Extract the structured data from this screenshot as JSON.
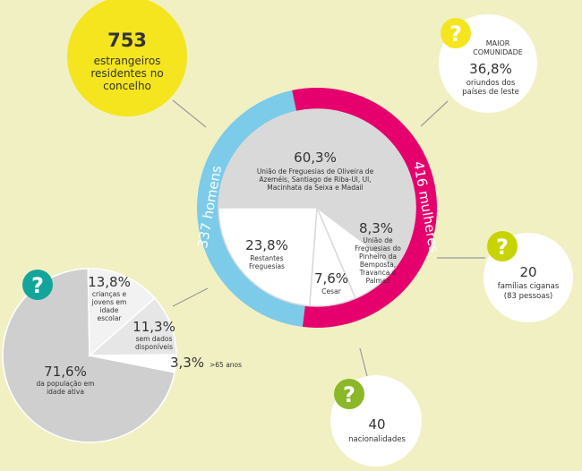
{
  "colors": {
    "background": "#f1f0c3",
    "yellow": "#f4e51e",
    "blue": "#7ccbe9",
    "magenta": "#e5006d",
    "gray_main": "#d9d9d9",
    "gray_light": "#f2f2f2",
    "gray_mid": "#e6e6e6",
    "gray_dark": "#cfcfcf",
    "white": "#ffffff",
    "teal": "#12a59c",
    "green": "#8ab826",
    "lime": "#c8d400",
    "text": "#333333"
  },
  "foreigners": {
    "number": "753",
    "line1": "estrangeiros",
    "line2": "residentes no",
    "line3": "concelho"
  },
  "men": {
    "label": "337 homens",
    "value": 337
  },
  "women": {
    "label": "416 mulheres",
    "value": 416
  },
  "parishes": [
    {
      "id": "oliveira",
      "percent_label": "60,3%",
      "value": 60.3,
      "desc": [
        "União de Freguesias de Oliveira de",
        "Azeméis, Santiago de Riba-Ul, Ul,",
        "Macinhata da Seixa e Madail"
      ]
    },
    {
      "id": "pinheiro",
      "percent_label": "8,3%",
      "value": 8.3,
      "desc": [
        "União de",
        "Freguesias do",
        "Pinheiro da",
        "Bemposta,",
        "Travanca e",
        "Palmaz"
      ]
    },
    {
      "id": "cesar",
      "percent_label": "7,6%",
      "value": 7.6,
      "desc": [
        "Cesar"
      ]
    },
    {
      "id": "restantes",
      "percent_label": "23,8%",
      "value": 23.8,
      "desc": [
        "Restantes",
        "Freguesias"
      ]
    }
  ],
  "ages": [
    {
      "id": "active",
      "percent_label": "71,6%",
      "value": 71.6,
      "desc": [
        "da população em",
        "idade ativa"
      ]
    },
    {
      "id": "over65",
      "percent_label": "3,3%",
      "value": 3.3,
      "desc": [
        ">65 anos"
      ]
    },
    {
      "id": "nodata",
      "percent_label": "11,3%",
      "value": 11.3,
      "desc": [
        "sem dados",
        "disponíveis"
      ]
    },
    {
      "id": "children",
      "percent_label": "13,8%",
      "value": 13.8,
      "desc": [
        "crianças e",
        "jovens em",
        "idade",
        "escolar"
      ]
    }
  ],
  "community": {
    "q": "?",
    "title1": "MAIOR",
    "title2": "COMUNIDADE",
    "percent_label": "36,8%",
    "line1": "oriundos dos",
    "line2": "países de leste"
  },
  "gypsies": {
    "q": "?",
    "number": "20",
    "line1": "famílias ciganas",
    "line2": "(83 pessoas)"
  },
  "nationalities": {
    "q": "?",
    "number": "40",
    "line1": "nacionalidades"
  },
  "age_q": "?"
}
